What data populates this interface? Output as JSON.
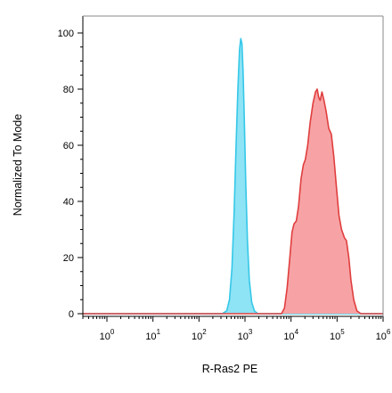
{
  "chart_data": {
    "type": "area",
    "title": "",
    "xlabel": "R-Ras2 PE",
    "ylabel": "Normalized To Mode",
    "x_scale": "log",
    "xlim": [
      0.3,
      1000000
    ],
    "ylim": [
      0,
      100
    ],
    "x_ticks": [
      {
        "mantissa": "10",
        "exp": "0"
      },
      {
        "mantissa": "10",
        "exp": "1"
      },
      {
        "mantissa": "10",
        "exp": "2"
      },
      {
        "mantissa": "10",
        "exp": "3"
      },
      {
        "mantissa": "10",
        "exp": "4"
      },
      {
        "mantissa": "10",
        "exp": "5"
      },
      {
        "mantissa": "10",
        "exp": "6"
      }
    ],
    "y_ticks": [
      "0",
      "20",
      "40",
      "60",
      "80",
      "100"
    ],
    "grid": false,
    "legend": "none",
    "series": [
      {
        "color": "#35c8e8",
        "fill": "#8ee3f5",
        "points": [
          [
            0.3,
            0
          ],
          [
            320,
            0
          ],
          [
            400,
            1
          ],
          [
            460,
            5
          ],
          [
            520,
            16
          ],
          [
            580,
            36
          ],
          [
            640,
            60
          ],
          [
            700,
            80
          ],
          [
            760,
            94
          ],
          [
            810,
            98
          ],
          [
            860,
            96
          ],
          [
            910,
            86
          ],
          [
            970,
            68
          ],
          [
            1040,
            46
          ],
          [
            1130,
            26
          ],
          [
            1240,
            12
          ],
          [
            1400,
            4
          ],
          [
            1600,
            1
          ],
          [
            1900,
            0
          ],
          [
            1000000,
            0
          ]
        ]
      },
      {
        "color": "#e03e3e",
        "fill": "#f7a3a5",
        "points": [
          [
            0.3,
            0
          ],
          [
            6200,
            0
          ],
          [
            7200,
            2
          ],
          [
            8200,
            9
          ],
          [
            9300,
            19
          ],
          [
            10500,
            29
          ],
          [
            11600,
            32
          ],
          [
            13000,
            33
          ],
          [
            14500,
            38
          ],
          [
            16500,
            48
          ],
          [
            18500,
            53
          ],
          [
            20500,
            55
          ],
          [
            23000,
            60
          ],
          [
            26000,
            68
          ],
          [
            30000,
            75
          ],
          [
            34000,
            79
          ],
          [
            37000,
            80
          ],
          [
            40000,
            77
          ],
          [
            43000,
            76
          ],
          [
            47000,
            79
          ],
          [
            52000,
            76
          ],
          [
            58000,
            72
          ],
          [
            66000,
            66
          ],
          [
            75000,
            64
          ],
          [
            85000,
            56
          ],
          [
            97000,
            45
          ],
          [
            110000,
            35
          ],
          [
            125000,
            30
          ],
          [
            145000,
            27
          ],
          [
            160000,
            26
          ],
          [
            180000,
            20
          ],
          [
            200000,
            12
          ],
          [
            230000,
            5
          ],
          [
            270000,
            1
          ],
          [
            330000,
            0
          ],
          [
            1000000,
            0
          ]
        ]
      }
    ]
  }
}
